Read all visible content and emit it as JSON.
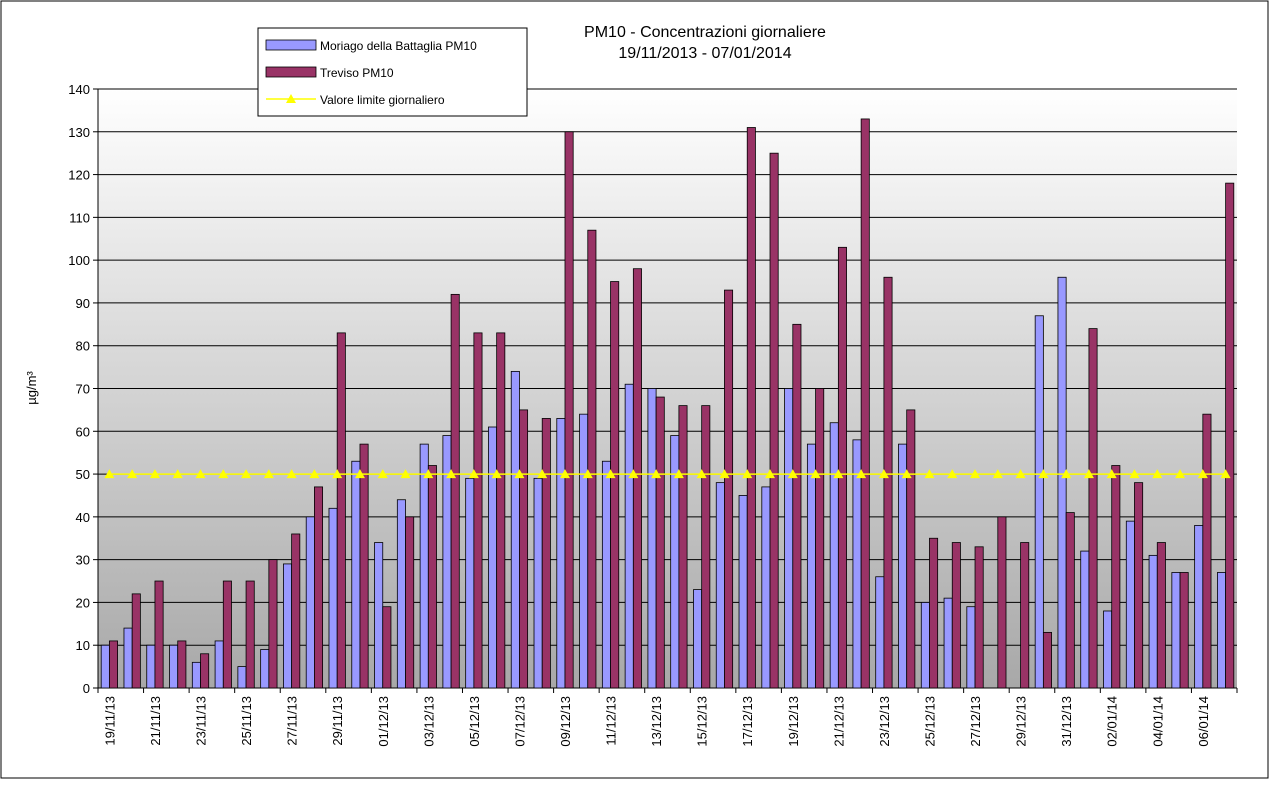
{
  "chart_data": {
    "type": "bar",
    "title": "PM10 - Concentrazioni giornaliere",
    "subtitle": "19/11/2013 - 07/01/2014",
    "y_label": "µg/m³",
    "categories": [
      "19/11/13",
      null,
      "21/11/13",
      null,
      "23/11/13",
      null,
      "25/11/13",
      null,
      "27/11/13",
      null,
      "29/11/13",
      null,
      "01/12/13",
      null,
      "03/12/13",
      null,
      "05/12/13",
      null,
      "07/12/13",
      null,
      "09/12/13",
      null,
      "11/12/13",
      null,
      "13/12/13",
      null,
      "15/12/13",
      null,
      "17/12/13",
      null,
      "19/12/13",
      null,
      "21/12/13",
      null,
      "23/12/13",
      null,
      "25/12/13",
      null,
      "27/12/13",
      null,
      "29/12/13",
      null,
      "31/12/13",
      null,
      "02/01/14",
      null,
      "04/01/14",
      null,
      "06/01/14",
      null
    ],
    "series": [
      {
        "name": "Moriago della Battaglia PM10",
        "color": "#9999ff",
        "values": [
          10,
          14,
          10,
          10,
          6,
          11,
          5,
          9,
          29,
          40,
          42,
          53,
          34,
          44,
          57,
          59,
          49,
          61,
          74,
          49,
          63,
          64,
          53,
          71,
          70,
          59,
          23,
          48,
          45,
          47,
          70,
          57,
          62,
          58,
          26,
          57,
          20,
          21,
          19,
          null,
          null,
          87,
          96,
          32,
          18,
          39,
          31,
          27,
          38,
          27
        ]
      },
      {
        "name": "Treviso PM10",
        "color": "#993366",
        "values": [
          11,
          22,
          25,
          11,
          8,
          25,
          25,
          30,
          36,
          47,
          83,
          57,
          19,
          40,
          52,
          92,
          83,
          83,
          65,
          63,
          130,
          107,
          95,
          98,
          68,
          66,
          66,
          93,
          131,
          125,
          85,
          70,
          103,
          133,
          96,
          65,
          35,
          34,
          33,
          40,
          34,
          13,
          41,
          84,
          52,
          48,
          34,
          27,
          64,
          118
        ]
      },
      {
        "name": "Valore limite giornaliero",
        "color": "#ffff00",
        "type": "line",
        "values": [
          50,
          50,
          50,
          50,
          50,
          50,
          50,
          50,
          50,
          50,
          50,
          50,
          50,
          50,
          50,
          50,
          50,
          50,
          50,
          50,
          50,
          50,
          50,
          50,
          50,
          50,
          50,
          50,
          50,
          50,
          50,
          50,
          50,
          50,
          50,
          50,
          50,
          50,
          50,
          50,
          50,
          50,
          50,
          50,
          50,
          50,
          50,
          50,
          50,
          50
        ]
      }
    ],
    "ylim": [
      0,
      140
    ],
    "yticks": [
      0,
      10,
      20,
      30,
      40,
      50,
      60,
      70,
      80,
      90,
      100,
      110,
      120,
      130,
      140
    ],
    "grid": true
  }
}
